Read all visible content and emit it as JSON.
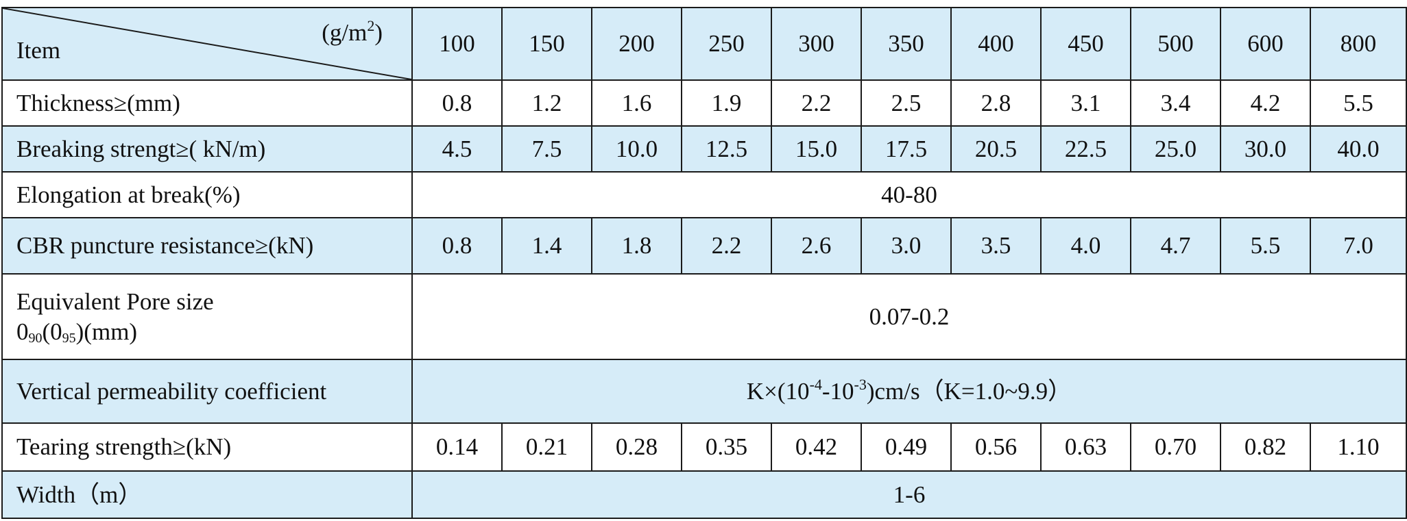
{
  "header": {
    "item": "Item",
    "unit_base": "(g/m",
    "unit_sup": "2",
    "unit_end": ")",
    "weights": [
      "100",
      "150",
      "200",
      "250",
      "300",
      "350",
      "400",
      "450",
      "500",
      "600",
      "800"
    ]
  },
  "rows": {
    "thickness": {
      "label": "Thickness≥(mm)",
      "values": [
        "0.8",
        "1.2",
        "1.6",
        "1.9",
        "2.2",
        "2.5",
        "2.8",
        "3.1",
        "3.4",
        "4.2",
        "5.5"
      ]
    },
    "breaking": {
      "label": "Breaking strengt≥( kN/m)",
      "values": [
        "4.5",
        "7.5",
        "10.0",
        "12.5",
        "15.0",
        "17.5",
        "20.5",
        "22.5",
        "25.0",
        "30.0",
        "40.0"
      ]
    },
    "elongation": {
      "label": "Elongation at break(%)",
      "value": "40-80"
    },
    "cbr": {
      "label": "CBR puncture resistance≥(kN)",
      "values": [
        "0.8",
        "1.4",
        "1.8",
        "2.2",
        "2.6",
        "3.0",
        "3.5",
        "4.0",
        "4.7",
        "5.5",
        "7.0"
      ]
    },
    "pore": {
      "label_line1": "Equivalent Pore size",
      "label_a": "0",
      "label_sub1": "90",
      "label_b": "(0",
      "label_sub2": "95",
      "label_c": ")(mm)",
      "value": "0.07-0.2"
    },
    "permeability": {
      "label": "Vertical permeability coefficient",
      "value_a": "K×(10",
      "value_sup1": "-4",
      "value_b": "-10",
      "value_sup2": "-3",
      "value_c": ")cm/s（K=1.0~9.9）"
    },
    "tearing": {
      "label": "Tearing strength≥(kN)",
      "values": [
        "0.14",
        "0.21",
        "0.28",
        "0.35",
        "0.42",
        "0.49",
        "0.56",
        "0.63",
        "0.70",
        "0.82",
        "1.10"
      ]
    },
    "width": {
      "label": "Width（m）",
      "value": "1-6"
    }
  },
  "colors": {
    "blue_row": "#d6ecf8",
    "white_row": "#ffffff",
    "border": "#1a1a1a"
  }
}
